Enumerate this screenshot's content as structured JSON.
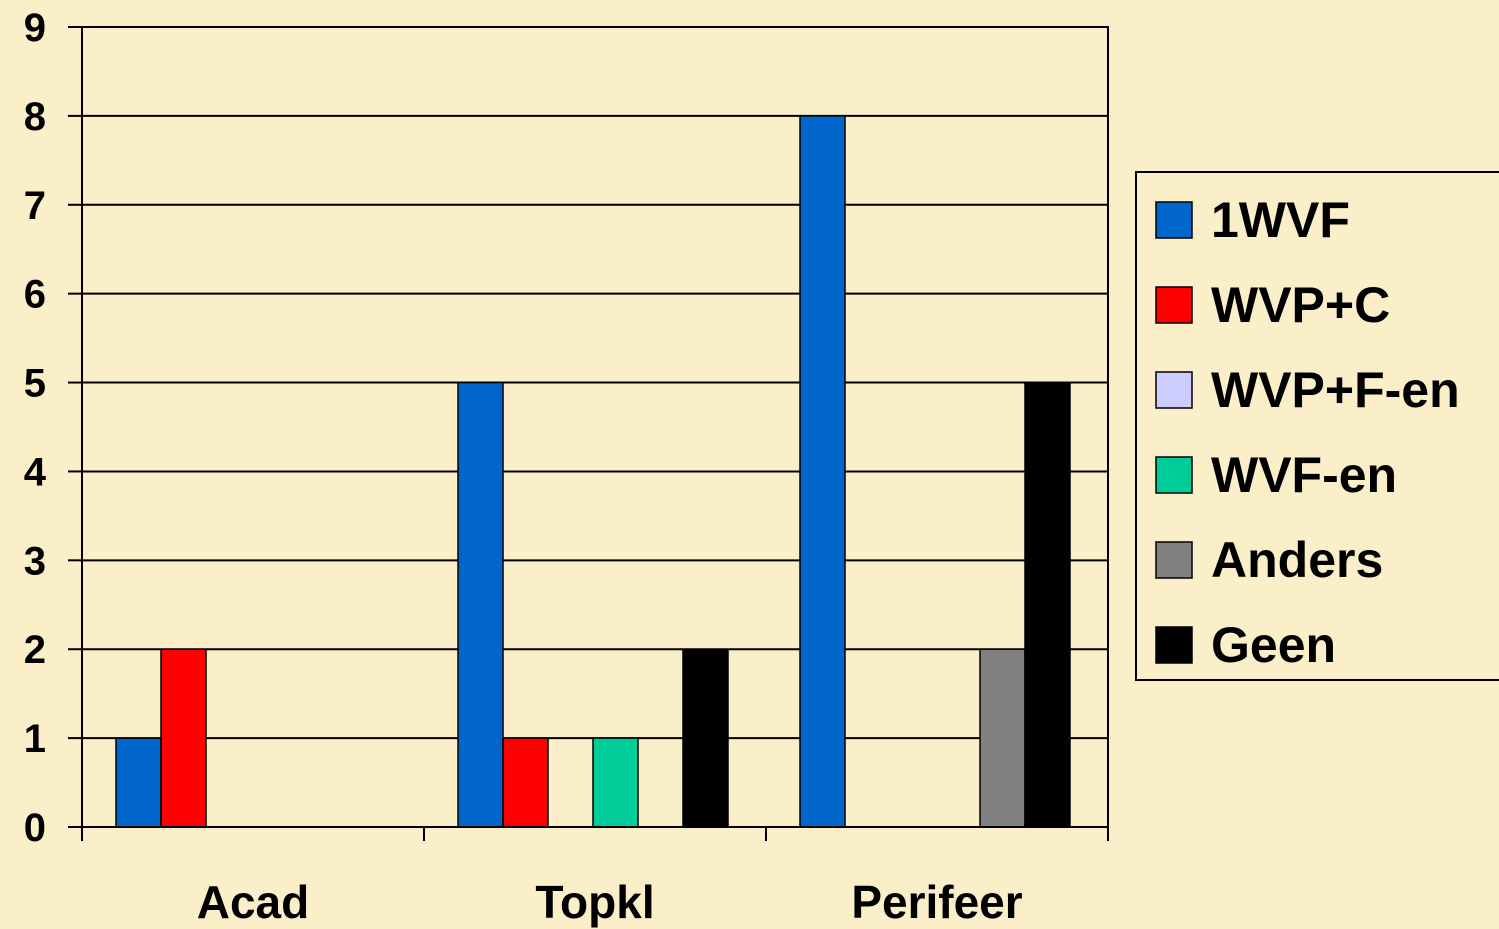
{
  "chart_data": {
    "type": "bar",
    "categories": [
      "Acad",
      "Topkl",
      "Perifeer"
    ],
    "series": [
      {
        "name": "1WVF",
        "color": "#0066CC",
        "values": [
          1,
          5,
          8
        ]
      },
      {
        "name": "WVP+C",
        "color": "#FF0000",
        "values": [
          2,
          1,
          0
        ]
      },
      {
        "name": "WVP+F-en",
        "color": "#CCCCFF",
        "values": [
          0,
          0,
          0
        ]
      },
      {
        "name": "WVF-en",
        "color": "#00CC99",
        "values": [
          0,
          1,
          0
        ]
      },
      {
        "name": "Anders",
        "color": "#808080",
        "values": [
          0,
          0,
          2
        ]
      },
      {
        "name": "Geen",
        "color": "#000000",
        "values": [
          0,
          2,
          5
        ]
      }
    ],
    "ylim": [
      0,
      9
    ],
    "yticks": [
      0,
      1,
      2,
      3,
      4,
      5,
      6,
      7,
      8,
      9
    ],
    "grid": true,
    "legend": "right",
    "background": "#FAEFC9"
  }
}
